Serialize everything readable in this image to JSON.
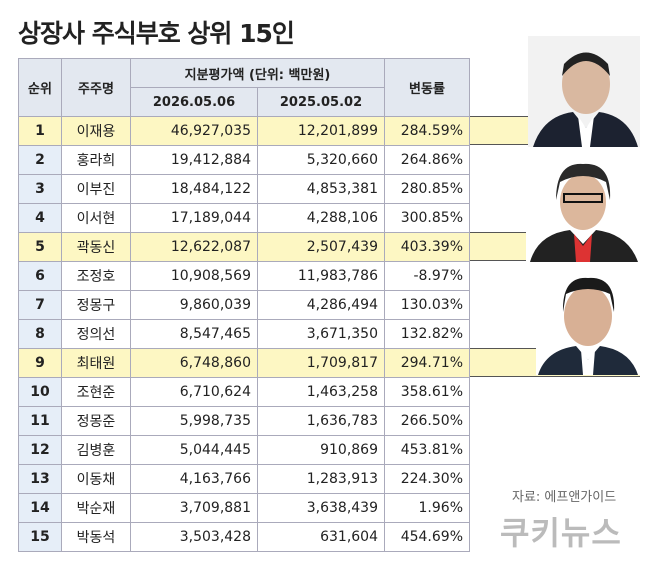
{
  "title": "상장사 주식부호 상위 15인",
  "table": {
    "columns": [
      "순위",
      "주주명",
      "지분평가액 (단위: 백만원)",
      "변동률"
    ],
    "dates": [
      "2026.05.06",
      "2025.05.02"
    ],
    "rows": [
      [
        "1",
        "이재용",
        "46,927,035",
        "12,201,899",
        "284.59%"
      ],
      [
        "2",
        "홍라희",
        "19,412,884",
        "5,320,660",
        "264.86%"
      ],
      [
        "3",
        "이부진",
        "18,484,122",
        "4,853,381",
        "280.85%"
      ],
      [
        "4",
        "이서현",
        "17,189,044",
        "4,288,106",
        "300.85%"
      ],
      [
        "5",
        "곽동신",
        "12,622,087",
        "2,507,439",
        "403.39%"
      ],
      [
        "6",
        "조정호",
        "10,908,569",
        "11,983,786",
        "-8.97%"
      ],
      [
        "7",
        "정몽구",
        "9,860,039",
        "4,286,494",
        "130.03%"
      ],
      [
        "8",
        "정의선",
        "8,547,465",
        "3,671,350",
        "132.82%"
      ],
      [
        "9",
        "최태원",
        "6,748,860",
        "1,709,817",
        "294.71%"
      ],
      [
        "10",
        "조현준",
        "6,710,624",
        "1,463,258",
        "358.61%"
      ],
      [
        "11",
        "정몽준",
        "5,998,735",
        "1,636,783",
        "266.50%"
      ],
      [
        "12",
        "김병훈",
        "5,044,445",
        "910,869",
        "453.81%"
      ],
      [
        "13",
        "이동채",
        "4,163,766",
        "1,283,913",
        "224.30%"
      ],
      [
        "14",
        "박순재",
        "3,709,881",
        "3,638,439",
        "1.96%"
      ],
      [
        "15",
        "박동석",
        "3,503,428",
        "631,604",
        "454.69%"
      ]
    ],
    "highlight_rows": [
      0,
      4,
      8
    ]
  },
  "source": "자료: 에프앤가이드",
  "brand": "쿠키뉴스"
}
